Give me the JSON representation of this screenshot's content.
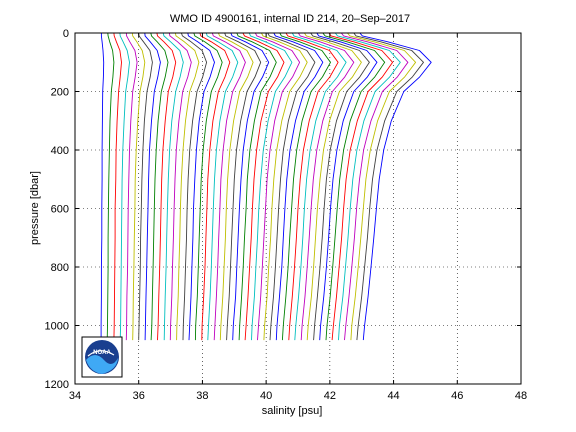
{
  "chart_data": {
    "type": "line",
    "title": "WMO ID 4900161, internal ID 214, 20–Sep–2017",
    "xlabel": "salinity [psu]",
    "ylabel": "pressure [dbar]",
    "xlim": [
      34,
      48
    ],
    "ylim": [
      0,
      1200
    ],
    "y_reversed": true,
    "x_ticks": [
      34,
      36,
      38,
      40,
      42,
      44,
      46,
      48
    ],
    "y_ticks": [
      0,
      200,
      400,
      600,
      800,
      1000,
      1200
    ],
    "grid": "dotted",
    "legend": "none",
    "pressure_levels": [
      0,
      10,
      30,
      60,
      100,
      150,
      200,
      300,
      400,
      500,
      600,
      700,
      800,
      900,
      1000,
      1050
    ],
    "profile_shape": [
      0.1,
      0.15,
      0.6,
      1.3,
      1.6,
      1.35,
      1.0,
      0.7,
      0.5,
      0.38,
      0.3,
      0.24,
      0.18,
      0.12,
      0.06,
      0.03
    ],
    "series": [
      {
        "color": "#0000ff",
        "values": [
          34.83,
          34.83,
          34.85,
          34.88,
          34.9,
          34.89,
          34.87,
          34.86,
          34.85,
          34.85,
          34.84,
          34.84,
          34.83,
          34.83,
          34.82,
          34.82
        ]
      },
      {
        "color": "#008000",
        "values": [
          35.03,
          35.04,
          35.09,
          35.18,
          35.22,
          35.19,
          35.14,
          35.1,
          35.08,
          35.06,
          35.05,
          35.04,
          35.04,
          35.03,
          35.02,
          35.01
        ]
      },
      {
        "color": "#ff0000",
        "values": [
          35.22,
          35.23,
          35.3,
          35.41,
          35.46,
          35.42,
          35.37,
          35.32,
          35.29,
          35.28,
          35.26,
          35.26,
          35.25,
          35.24,
          35.23,
          35.22
        ]
      },
      {
        "color": "#00bfbf",
        "values": [
          35.41,
          35.42,
          35.51,
          35.64,
          35.71,
          35.66,
          35.59,
          35.54,
          35.5,
          35.48,
          35.47,
          35.46,
          35.45,
          35.44,
          35.43,
          35.42
        ]
      },
      {
        "color": "#bf00bf",
        "values": [
          35.61,
          35.62,
          35.72,
          35.88,
          35.95,
          35.89,
          35.81,
          35.75,
          35.71,
          35.69,
          35.67,
          35.66,
          35.65,
          35.63,
          35.62,
          35.61
        ]
      },
      {
        "color": "#bfbf00",
        "values": [
          35.8,
          35.81,
          35.94,
          36.11,
          36.19,
          36.13,
          36.04,
          35.97,
          35.92,
          35.89,
          35.88,
          35.86,
          35.85,
          35.83,
          35.82,
          35.81
        ]
      },
      {
        "color": "#404040",
        "values": [
          35.99,
          36.01,
          36.15,
          36.35,
          36.43,
          36.36,
          36.26,
          36.18,
          36.13,
          36.1,
          36.08,
          36.06,
          36.05,
          36.03,
          36.01,
          36.0
        ]
      },
      {
        "color": "#0000ff",
        "values": [
          36.19,
          36.2,
          36.36,
          36.58,
          36.68,
          36.6,
          36.49,
          36.4,
          36.34,
          36.31,
          36.29,
          36.27,
          36.25,
          36.23,
          36.21,
          36.2
        ]
      },
      {
        "color": "#008000",
        "values": [
          36.38,
          36.4,
          36.58,
          36.82,
          36.92,
          36.83,
          36.71,
          36.61,
          36.55,
          36.51,
          36.49,
          36.47,
          36.45,
          36.43,
          36.41,
          36.39
        ]
      },
      {
        "color": "#ff0000",
        "values": [
          36.57,
          36.59,
          36.79,
          37.05,
          37.16,
          37.07,
          36.93,
          36.83,
          36.76,
          36.72,
          36.7,
          36.68,
          36.66,
          36.63,
          36.61,
          36.59
        ]
      },
      {
        "color": "#00bfbf",
        "values": [
          36.77,
          36.79,
          37.0,
          37.29,
          37.4,
          37.3,
          37.16,
          37.04,
          36.97,
          36.93,
          36.9,
          36.88,
          36.86,
          36.83,
          36.81,
          36.8
        ]
      },
      {
        "color": "#bf00bf",
        "values": [
          36.96,
          36.98,
          37.22,
          37.52,
          37.65,
          37.54,
          37.38,
          37.26,
          37.18,
          37.14,
          37.11,
          37.09,
          37.06,
          37.04,
          37.0,
          36.99
        ]
      },
      {
        "color": "#bfbf00",
        "values": [
          37.15,
          37.17,
          37.43,
          37.76,
          37.89,
          37.77,
          37.6,
          37.47,
          37.39,
          37.34,
          37.31,
          37.29,
          37.26,
          37.24,
          37.2,
          37.19
        ]
      },
      {
        "color": "#404040",
        "values": [
          37.34,
          37.37,
          37.64,
          37.99,
          38.13,
          38.01,
          37.83,
          37.69,
          37.6,
          37.55,
          37.52,
          37.5,
          37.47,
          37.44,
          37.4,
          37.39
        ]
      },
      {
        "color": "#0000ff",
        "values": [
          37.54,
          37.56,
          37.85,
          38.23,
          38.38,
          38.24,
          38.05,
          37.9,
          37.81,
          37.76,
          37.72,
          37.7,
          37.67,
          37.64,
          37.6,
          37.58
        ]
      },
      {
        "color": "#008000",
        "values": [
          37.73,
          37.76,
          38.07,
          38.46,
          38.62,
          38.48,
          38.28,
          38.12,
          38.02,
          37.96,
          37.93,
          37.9,
          37.87,
          37.84,
          37.79,
          37.78
        ]
      },
      {
        "color": "#ff0000",
        "values": [
          37.92,
          37.95,
          38.28,
          38.7,
          38.86,
          38.71,
          38.5,
          38.33,
          38.23,
          38.17,
          38.14,
          38.11,
          38.08,
          38.04,
          37.99,
          37.98
        ]
      },
      {
        "color": "#00bfbf",
        "values": [
          38.12,
          38.15,
          38.49,
          38.93,
          39.11,
          38.95,
          38.72,
          38.55,
          38.44,
          38.38,
          38.34,
          38.31,
          38.28,
          38.24,
          38.19,
          38.17
        ]
      },
      {
        "color": "#bf00bf",
        "values": [
          38.31,
          38.34,
          38.71,
          39.17,
          39.35,
          39.18,
          38.95,
          38.76,
          38.65,
          38.58,
          38.55,
          38.51,
          38.48,
          38.44,
          38.39,
          38.37
        ]
      },
      {
        "color": "#bfbf00",
        "values": [
          38.5,
          38.54,
          38.92,
          39.4,
          39.59,
          39.42,
          39.17,
          38.98,
          38.86,
          38.79,
          38.75,
          38.72,
          38.68,
          38.64,
          38.58,
          38.56
        ]
      },
      {
        "color": "#404040",
        "values": [
          38.7,
          38.73,
          39.13,
          39.64,
          39.83,
          39.65,
          39.4,
          39.2,
          39.07,
          39.0,
          38.96,
          38.92,
          38.88,
          38.84,
          38.78,
          38.76
        ]
      },
      {
        "color": "#0000ff",
        "values": [
          38.89,
          38.93,
          39.35,
          39.87,
          40.08,
          39.89,
          39.62,
          39.41,
          39.28,
          39.21,
          39.16,
          39.12,
          39.08,
          39.04,
          38.97,
          38.95
        ]
      },
      {
        "color": "#008000",
        "values": [
          39.08,
          39.12,
          39.56,
          40.11,
          40.32,
          40.12,
          39.84,
          39.63,
          39.49,
          39.41,
          39.37,
          39.32,
          39.28,
          39.23,
          39.17,
          39.15
        ]
      },
      {
        "color": "#ff0000",
        "values": [
          39.27,
          39.32,
          39.77,
          40.34,
          40.56,
          40.36,
          40.07,
          39.84,
          39.7,
          39.62,
          39.57,
          39.53,
          39.48,
          39.43,
          39.37,
          39.34
        ]
      },
      {
        "color": "#00bfbf",
        "values": [
          39.47,
          39.51,
          39.98,
          40.58,
          40.81,
          40.59,
          40.29,
          40.06,
          39.91,
          39.83,
          39.77,
          39.73,
          39.68,
          39.63,
          39.56,
          39.54
        ]
      },
      {
        "color": "#bf00bf",
        "values": [
          39.66,
          39.71,
          40.2,
          40.81,
          41.05,
          40.83,
          40.51,
          40.27,
          40.12,
          40.03,
          39.98,
          39.93,
          39.88,
          39.83,
          39.76,
          39.73
        ]
      },
      {
        "color": "#bfbf00",
        "values": [
          39.85,
          39.9,
          40.41,
          41.05,
          41.29,
          41.06,
          40.74,
          40.49,
          40.33,
          40.24,
          40.18,
          40.14,
          40.08,
          40.03,
          39.95,
          39.93
        ]
      },
      {
        "color": "#404040",
        "values": [
          40.05,
          40.1,
          40.62,
          41.28,
          41.53,
          41.3,
          40.96,
          40.7,
          40.54,
          40.45,
          40.39,
          40.34,
          40.29,
          40.23,
          40.15,
          40.12
        ]
      },
      {
        "color": "#0000ff",
        "values": [
          40.24,
          40.29,
          40.84,
          41.52,
          41.78,
          41.53,
          41.19,
          40.92,
          40.75,
          40.65,
          40.59,
          40.54,
          40.49,
          40.42,
          40.34,
          40.32
        ]
      },
      {
        "color": "#008000",
        "values": [
          40.43,
          40.48,
          41.05,
          41.75,
          42.02,
          41.77,
          41.41,
          41.13,
          40.96,
          40.86,
          40.8,
          40.74,
          40.69,
          40.62,
          40.54,
          40.51
        ]
      },
      {
        "color": "#ff0000",
        "values": [
          40.62,
          40.68,
          41.26,
          41.99,
          42.26,
          42.0,
          41.63,
          41.35,
          41.17,
          41.07,
          41.0,
          40.95,
          40.89,
          40.82,
          40.74,
          40.71
        ]
      },
      {
        "color": "#00bfbf",
        "values": [
          40.82,
          40.87,
          41.47,
          42.22,
          42.51,
          42.24,
          41.86,
          41.56,
          41.38,
          41.27,
          41.2,
          41.15,
          41.09,
          41.02,
          40.93,
          40.9
        ]
      },
      {
        "color": "#bf00bf",
        "values": [
          41.01,
          41.07,
          41.69,
          42.46,
          42.75,
          42.47,
          42.08,
          41.78,
          41.59,
          41.48,
          41.41,
          41.35,
          41.29,
          41.22,
          41.13,
          41.1
        ]
      },
      {
        "color": "#bfbf00",
        "values": [
          41.2,
          41.26,
          41.9,
          42.69,
          42.99,
          42.71,
          42.3,
          41.99,
          41.8,
          41.69,
          41.61,
          41.55,
          41.49,
          41.42,
          41.32,
          41.29
        ]
      },
      {
        "color": "#404040",
        "values": [
          41.4,
          41.46,
          42.11,
          42.93,
          43.24,
          42.94,
          42.53,
          42.21,
          42.01,
          41.89,
          41.82,
          41.76,
          41.69,
          41.61,
          41.52,
          41.49
        ]
      },
      {
        "color": "#0000ff",
        "values": [
          41.59,
          41.65,
          42.33,
          43.16,
          43.48,
          43.18,
          42.75,
          42.42,
          42.22,
          42.1,
          42.02,
          41.96,
          41.89,
          41.81,
          41.71,
          41.68
        ]
      },
      {
        "color": "#008000",
        "values": [
          41.78,
          41.85,
          42.54,
          43.4,
          43.72,
          43.41,
          42.98,
          42.64,
          42.43,
          42.31,
          42.23,
          42.16,
          42.09,
          42.01,
          41.91,
          41.88
        ]
      },
      {
        "color": "#ff0000",
        "values": [
          41.97,
          42.04,
          42.75,
          43.63,
          43.97,
          43.65,
          43.2,
          42.86,
          42.64,
          42.51,
          42.43,
          42.37,
          42.29,
          42.21,
          42.11,
          42.07
        ]
      },
      {
        "color": "#00bfbf",
        "values": [
          42.17,
          42.24,
          42.96,
          43.87,
          44.21,
          43.88,
          43.42,
          43.07,
          42.85,
          42.72,
          42.64,
          42.57,
          42.49,
          42.41,
          42.3,
          42.27
        ]
      },
      {
        "color": "#bf00bf",
        "values": [
          42.36,
          42.43,
          43.18,
          44.1,
          44.45,
          44.12,
          43.65,
          43.29,
          43.06,
          42.93,
          42.84,
          42.77,
          42.69,
          42.6,
          42.5,
          42.46
        ]
      },
      {
        "color": "#bfbf00",
        "values": [
          42.55,
          42.63,
          43.39,
          44.34,
          44.69,
          44.35,
          43.87,
          43.5,
          43.27,
          43.13,
          43.05,
          42.97,
          42.89,
          42.8,
          42.69,
          42.66
        ]
      },
      {
        "color": "#404040",
        "values": [
          42.75,
          42.82,
          43.6,
          44.57,
          44.94,
          44.59,
          44.1,
          43.72,
          43.48,
          43.34,
          43.25,
          43.18,
          43.09,
          43.0,
          42.89,
          42.85
        ]
      },
      {
        "color": "#0000ff",
        "values": [
          42.94,
          43.02,
          43.82,
          44.81,
          45.18,
          44.82,
          44.32,
          43.93,
          43.69,
          43.55,
          43.46,
          43.38,
          43.29,
          43.2,
          43.09,
          43.05
        ]
      }
    ]
  }
}
